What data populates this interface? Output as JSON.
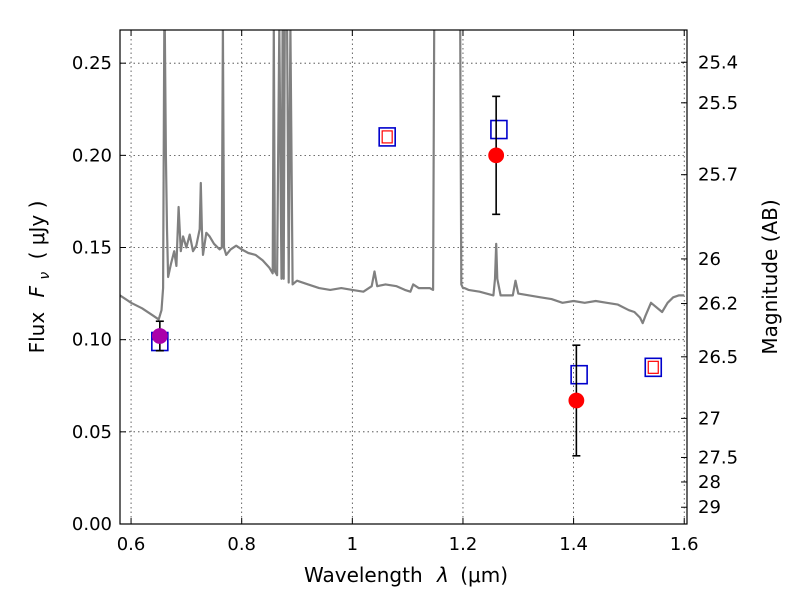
{
  "chart_data": {
    "type": "scatter",
    "xlabel": "Wavelength",
    "xlabel_symbol": "λ",
    "xlabel_unit": "(μm)",
    "ylabel": "Flux",
    "ylabel_symbol": "F",
    "ylabel_subscript": "ν",
    "ylabel_unit": "( μJy )",
    "y2label": "Magnitude (AB)",
    "xlim": [
      0.58,
      1.605
    ],
    "ylim": [
      0.0,
      0.268
    ],
    "grid": true,
    "xticks": [
      0.6,
      0.8,
      1.0,
      1.2,
      1.4,
      1.6
    ],
    "xtick_labels": [
      "0.6",
      "0.8",
      "1",
      "1.2",
      "1.4",
      "1.6"
    ],
    "yticks": [
      0.0,
      0.05,
      0.1,
      0.15,
      0.2,
      0.25
    ],
    "ytick_labels": [
      "0.00",
      "0.05",
      "0.10",
      "0.15",
      "0.20",
      "0.25"
    ],
    "y2ticks": [
      {
        "label": "25.4",
        "flux": 0.2505
      },
      {
        "label": "25.5",
        "flux": 0.2285
      },
      {
        "label": "25.7",
        "flux": 0.1895
      },
      {
        "label": "26",
        "flux": 0.1438
      },
      {
        "label": "26.2",
        "flux": 0.1196
      },
      {
        "label": "26.5",
        "flux": 0.0907
      },
      {
        "label": "27",
        "flux": 0.0573
      },
      {
        "label": "27.5",
        "flux": 0.0361
      },
      {
        "label": "28",
        "flux": 0.0228
      },
      {
        "label": "29",
        "flux": 0.0091
      }
    ],
    "series": [
      {
        "kind": "line",
        "color": "#808080",
        "x": [
          0.58,
          0.6,
          0.62,
          0.64,
          0.65,
          0.655,
          0.658,
          0.66,
          0.661,
          0.663,
          0.665,
          0.667,
          0.672,
          0.678,
          0.682,
          0.686,
          0.69,
          0.694,
          0.7,
          0.706,
          0.712,
          0.718,
          0.724,
          0.726,
          0.728,
          0.73,
          0.736,
          0.742,
          0.75,
          0.76,
          0.764,
          0.766,
          0.768,
          0.772,
          0.78,
          0.79,
          0.8,
          0.812,
          0.825,
          0.838,
          0.85,
          0.856,
          0.858,
          0.86,
          0.864,
          0.868,
          0.872,
          0.874,
          0.876,
          0.878,
          0.882,
          0.885,
          0.888,
          0.892,
          0.9,
          0.92,
          0.94,
          0.96,
          0.98,
          1.0,
          1.02,
          1.035,
          1.04,
          1.045,
          1.06,
          1.08,
          1.095,
          1.105,
          1.11,
          1.12,
          1.14,
          1.146,
          1.148,
          1.15,
          1.195,
          1.197,
          1.2,
          1.203,
          1.21,
          1.23,
          1.255,
          1.258,
          1.26,
          1.262,
          1.268,
          1.28,
          1.29,
          1.295,
          1.3,
          1.32,
          1.34,
          1.36,
          1.38,
          1.4,
          1.42,
          1.44,
          1.46,
          1.48,
          1.5,
          1.51,
          1.52,
          1.525,
          1.53,
          1.54,
          1.56,
          1.57,
          1.58,
          1.59,
          1.6
        ],
        "y": [
          0.124,
          0.12,
          0.117,
          0.113,
          0.111,
          0.116,
          0.128,
          0.27,
          0.27,
          0.2,
          0.16,
          0.134,
          0.141,
          0.148,
          0.14,
          0.172,
          0.148,
          0.156,
          0.15,
          0.157,
          0.148,
          0.151,
          0.16,
          0.185,
          0.16,
          0.146,
          0.158,
          0.156,
          0.152,
          0.149,
          0.15,
          0.27,
          0.15,
          0.146,
          0.149,
          0.151,
          0.149,
          0.147,
          0.146,
          0.143,
          0.139,
          0.136,
          0.27,
          0.137,
          0.135,
          0.27,
          0.133,
          0.27,
          0.133,
          0.27,
          0.27,
          0.131,
          0.27,
          0.13,
          0.132,
          0.13,
          0.128,
          0.127,
          0.128,
          0.127,
          0.126,
          0.129,
          0.137,
          0.129,
          0.13,
          0.129,
          0.127,
          0.126,
          0.13,
          0.128,
          0.128,
          0.127,
          0.27,
          0.27,
          0.27,
          0.13,
          0.128,
          0.128,
          0.127,
          0.126,
          0.124,
          0.133,
          0.152,
          0.133,
          0.124,
          0.124,
          0.124,
          0.132,
          0.125,
          0.124,
          0.123,
          0.122,
          0.12,
          0.121,
          0.12,
          0.121,
          0.12,
          0.119,
          0.116,
          0.115,
          0.112,
          0.109,
          0.113,
          0.12,
          0.115,
          0.12,
          0.123,
          0.124,
          0.124
        ]
      },
      {
        "kind": "square",
        "name": "",
        "stroke": "#0000cc",
        "fill": "none",
        "x": [
          0.652,
          1.265,
          1.41
        ],
        "y": [
          0.099,
          0.214,
          0.081
        ]
      },
      {
        "kind": "square-double",
        "stroke": "#0000cc",
        "inner_stroke": "#ff0000",
        "x": [
          1.063,
          1.544
        ],
        "y": [
          0.21,
          0.085
        ]
      },
      {
        "kind": "point",
        "color": "#ff0000",
        "x": [
          1.26,
          1.405
        ],
        "y": [
          0.2,
          0.067
        ],
        "err": [
          0.032,
          0.03
        ]
      },
      {
        "kind": "point",
        "color": "#aa00aa",
        "x": [
          0.652
        ],
        "y": [
          0.102
        ],
        "err": [
          0.008
        ]
      }
    ]
  }
}
